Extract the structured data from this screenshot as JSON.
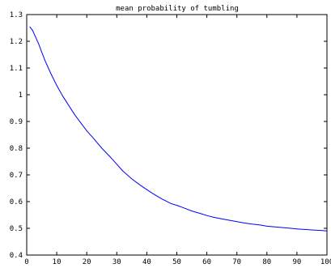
{
  "chart_data": {
    "type": "line",
    "title": "mean probability of tumbling",
    "xlabel": "",
    "ylabel": "",
    "xlim": [
      0,
      100
    ],
    "ylim": [
      0.4,
      1.3
    ],
    "grid": false,
    "xticks": [
      0,
      10,
      20,
      30,
      40,
      50,
      60,
      70,
      80,
      90,
      100
    ],
    "xtick_labels": [
      "0",
      "10",
      "20",
      "30",
      "40",
      "50",
      "60",
      "70",
      "80",
      "90",
      "100"
    ],
    "yticks": [
      0.4,
      0.5,
      0.6,
      0.7,
      0.8,
      0.9,
      1.0,
      1.1,
      1.2,
      1.3
    ],
    "ytick_labels": [
      "0.4",
      "0.5",
      "0.6",
      "0.7",
      "0.8",
      "0.9",
      "1",
      "1.1",
      "1.2",
      "1.3"
    ],
    "series": [
      {
        "color": "#0000ff",
        "x": [
          1,
          2,
          3,
          4,
          5,
          6,
          8,
          10,
          12,
          14,
          16,
          18,
          20,
          22,
          25,
          28,
          30,
          32,
          35,
          38,
          40,
          42,
          45,
          48,
          50,
          52,
          55,
          58,
          60,
          62,
          65,
          68,
          70,
          72,
          75,
          78,
          80,
          82,
          85,
          88,
          90,
          92,
          95,
          98,
          100
        ],
        "y": [
          1.255,
          1.24,
          1.215,
          1.19,
          1.16,
          1.13,
          1.08,
          1.035,
          0.995,
          0.96,
          0.925,
          0.895,
          0.865,
          0.84,
          0.8,
          0.765,
          0.74,
          0.715,
          0.685,
          0.66,
          0.645,
          0.63,
          0.61,
          0.593,
          0.586,
          0.578,
          0.565,
          0.555,
          0.548,
          0.542,
          0.535,
          0.529,
          0.525,
          0.521,
          0.516,
          0.512,
          0.508,
          0.506,
          0.503,
          0.5,
          0.498,
          0.496,
          0.494,
          0.492,
          0.49
        ]
      }
    ]
  }
}
